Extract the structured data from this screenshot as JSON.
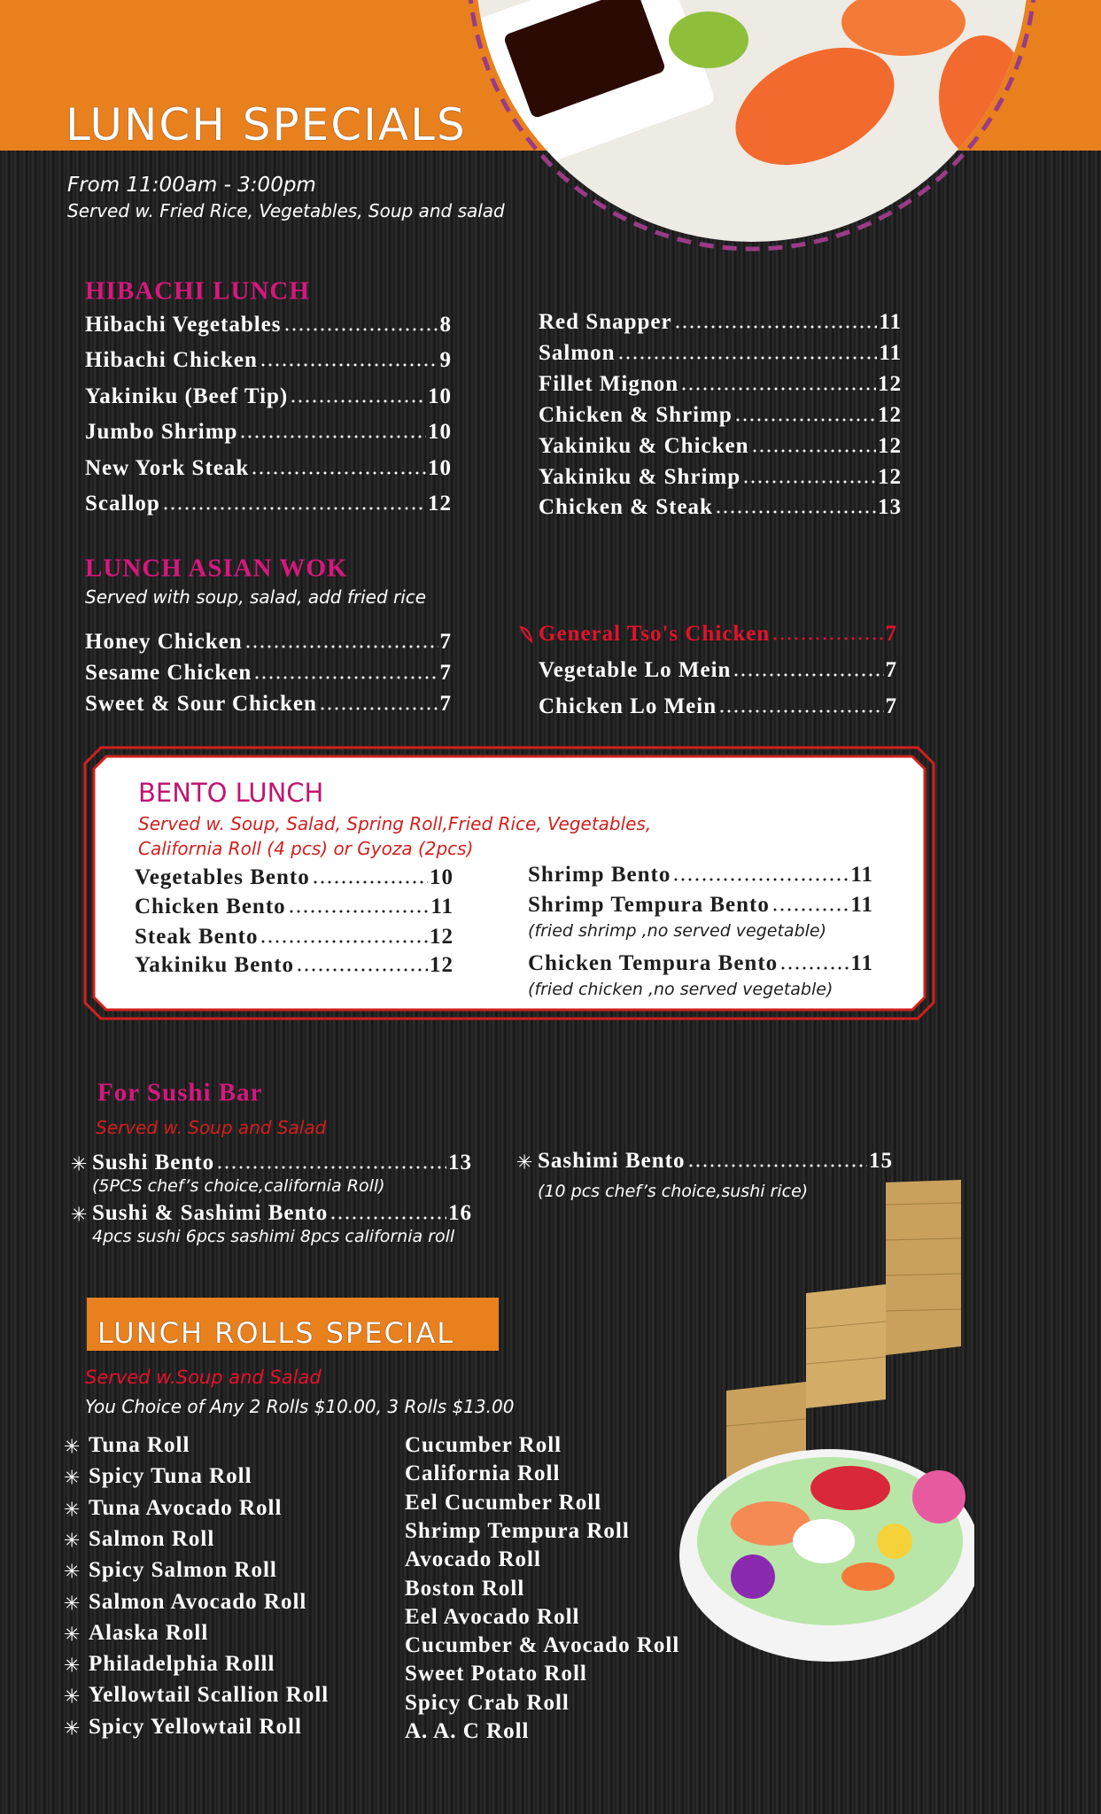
{
  "header": {
    "title": "LUNCH SPECIALS",
    "hours": "From 11:00am - 3:00pm",
    "served": "Served w. Fried Rice, Vegetables, Soup and salad"
  },
  "hibachi": {
    "heading": "HIBACHI LUNCH",
    "left": [
      {
        "name": "Hibachi Vegetables",
        "price": 8
      },
      {
        "name": "Hibachi Chicken",
        "price": 9
      },
      {
        "name": "Yakiniku (Beef Tip)",
        "price": 10
      },
      {
        "name": "Jumbo Shrimp",
        "price": 10
      },
      {
        "name": "New York Steak",
        "price": 10
      },
      {
        "name": "Scallop",
        "price": 12
      }
    ],
    "right": [
      {
        "name": "Red Snapper",
        "price": 11
      },
      {
        "name": "Salmon",
        "price": 11
      },
      {
        "name": "Fillet Mignon",
        "price": 12
      },
      {
        "name": "Chicken & Shrimp",
        "price": 12
      },
      {
        "name": "Yakiniku & Chicken",
        "price": 12
      },
      {
        "name": "Yakiniku & Shrimp",
        "price": 12
      },
      {
        "name": "Chicken & Steak",
        "price": 13
      }
    ]
  },
  "asian_wok": {
    "heading": "LUNCH ASIAN WOK",
    "subtitle": "Served with soup, salad, add fried rice",
    "left": [
      {
        "name": "Honey Chicken",
        "price": 7
      },
      {
        "name": "Sesame Chicken",
        "price": 7
      },
      {
        "name": "Sweet & Sour Chicken",
        "price": 7
      }
    ],
    "right": [
      {
        "name": "General Tso's Chicken",
        "price": 7,
        "color": "#e3122b"
      },
      {
        "name": "Vegetable Lo Mein",
        "price": 7
      },
      {
        "name": "Chicken Lo Mein",
        "price": 7
      }
    ]
  },
  "bento": {
    "heading": "BENTO LUNCH",
    "subtitle": [
      "Served w. Soup, Salad, Spring Roll,Fried Rice, Vegetables,",
      "California Roll (4 pcs)  or Gyoza (2pcs)"
    ],
    "left": [
      {
        "name": "Vegetables Bento",
        "price": 10
      },
      {
        "name": "Chicken Bento",
        "price": 11
      },
      {
        "name": "Steak Bento",
        "price": 12
      },
      {
        "name": "Yakiniku  Bento",
        "price": 12
      }
    ],
    "right": [
      {
        "name": "Shrimp  Bento",
        "price": 11
      },
      {
        "name": "Shrimp Tempura Bento",
        "price": 11,
        "note": "(fried shrimp ,no served vegetable)"
      },
      {
        "name": "Chicken Tempura Bento",
        "price": 11,
        "note": "(fried chicken ,no served vegetable)"
      }
    ]
  },
  "sushi_bar": {
    "heading": "For Sushi Bar",
    "subtitle": "Served w. Soup and Salad",
    "left": [
      {
        "name": "Sushi Bento",
        "price": 13,
        "note": "(5PCS chef’s choice,california Roll)"
      },
      {
        "name": "Sushi & Sashimi Bento",
        "price": 16,
        "note": "4pcs sushi 6pcs sashimi 8pcs california roll"
      }
    ],
    "right": [
      {
        "name": "Sashimi Bento",
        "price": 15,
        "note": "(10 pcs chef’s choice,sushi rice)"
      }
    ]
  },
  "rolls": {
    "heading": "LUNCH ROLLS SPECIAL",
    "subtitle": "Served w.Soup and Salad",
    "choice": "You Choice of Any 2 Rolls $10.00, 3 Rolls $13.00",
    "left": [
      "Tuna Roll",
      "Spicy Tuna Roll",
      "Tuna Avocado Roll",
      "Salmon Roll",
      "Spicy Salmon Roll",
      "Salmon Avocado Roll",
      "Alaska Roll",
      "Philadelphia Rolll",
      "Yellowtail Scallion Roll",
      "Spicy Yellowtail Roll"
    ],
    "right": [
      "Cucumber Roll",
      "California Roll",
      "Eel Cucumber Roll",
      "Shrimp Tempura Roll",
      "Avocado Roll",
      "Boston Roll",
      "Eel Avocado Roll",
      "Cucumber & Avocado Roll",
      "Sweet Potato Roll",
      "Spicy Crab Roll",
      "A. A. C Roll"
    ]
  }
}
